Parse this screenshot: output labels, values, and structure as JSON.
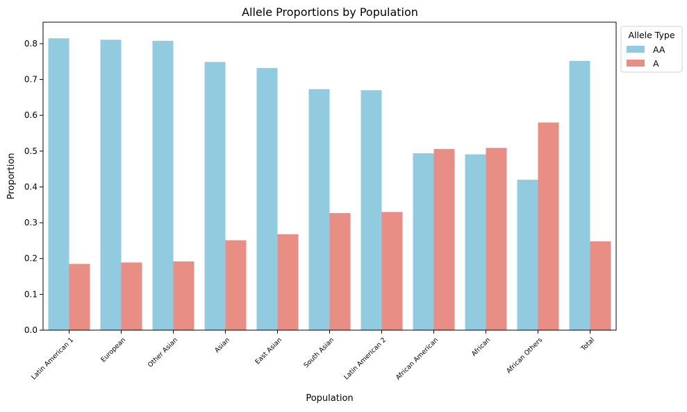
{
  "chart_data": {
    "type": "bar",
    "title": "Allele Proportions by Population",
    "xlabel": "Population",
    "ylabel": "Proportion",
    "ylim": [
      0,
      0.86
    ],
    "yticks": [
      "0.0",
      "0.1",
      "0.2",
      "0.3",
      "0.4",
      "0.5",
      "0.6",
      "0.7",
      "0.8"
    ],
    "categories": [
      "Latin American 1",
      "European",
      "Other Asian",
      "Asian",
      "East Asian",
      "South Asian",
      "Latin American 2",
      "African American",
      "African",
      "African Others",
      "Total"
    ],
    "series": [
      {
        "name": "AA",
        "color": "#92cae0",
        "values": [
          0.815,
          0.811,
          0.808,
          0.749,
          0.732,
          0.673,
          0.67,
          0.494,
          0.491,
          0.42,
          0.752
        ]
      },
      {
        "name": "A",
        "color": "#e98e84",
        "values": [
          0.185,
          0.189,
          0.192,
          0.251,
          0.268,
          0.327,
          0.33,
          0.506,
          0.509,
          0.58,
          0.248
        ]
      }
    ],
    "legend": {
      "title": "Allele Type",
      "placement": "outside-top-right"
    },
    "grid": false
  }
}
